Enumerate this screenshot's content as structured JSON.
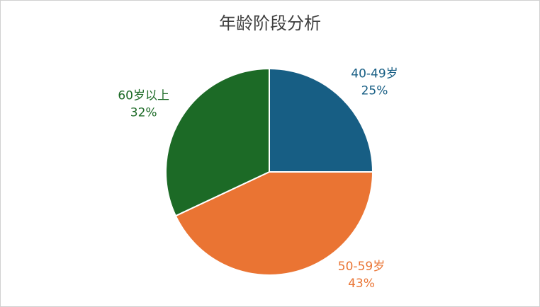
{
  "chart_data": {
    "type": "pie",
    "title": "年龄阶段分析",
    "categories": [
      "40-49岁",
      "50-59岁",
      "60岁以上"
    ],
    "values": [
      25,
      43,
      32
    ],
    "value_labels": [
      "25%",
      "43%",
      "32%"
    ],
    "colors": [
      "#175e84",
      "#ea7433",
      "#1c6a26"
    ]
  }
}
